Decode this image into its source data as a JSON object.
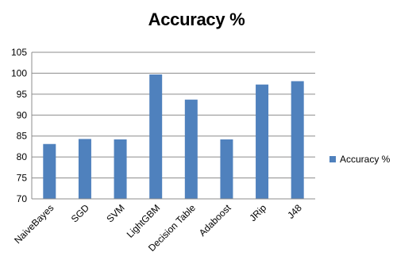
{
  "chart_data": {
    "type": "bar",
    "title": "Accuracy %",
    "categories": [
      "NaiveBayes",
      "SGD",
      "SVM",
      "LightGBM",
      "Decision Table",
      "Adaboost",
      "JRip",
      "J48"
    ],
    "series": [
      {
        "name": "Accuracy %",
        "values": [
          83.1,
          84.3,
          84.2,
          99.7,
          93.7,
          84.2,
          97.3,
          98.1
        ],
        "color": "#4F81BD"
      }
    ],
    "ylim": [
      70,
      105
    ],
    "yticks": [
      "70",
      "75",
      "80",
      "85",
      "90",
      "95",
      "100",
      "105"
    ],
    "grid": true,
    "legend_position": "right"
  }
}
